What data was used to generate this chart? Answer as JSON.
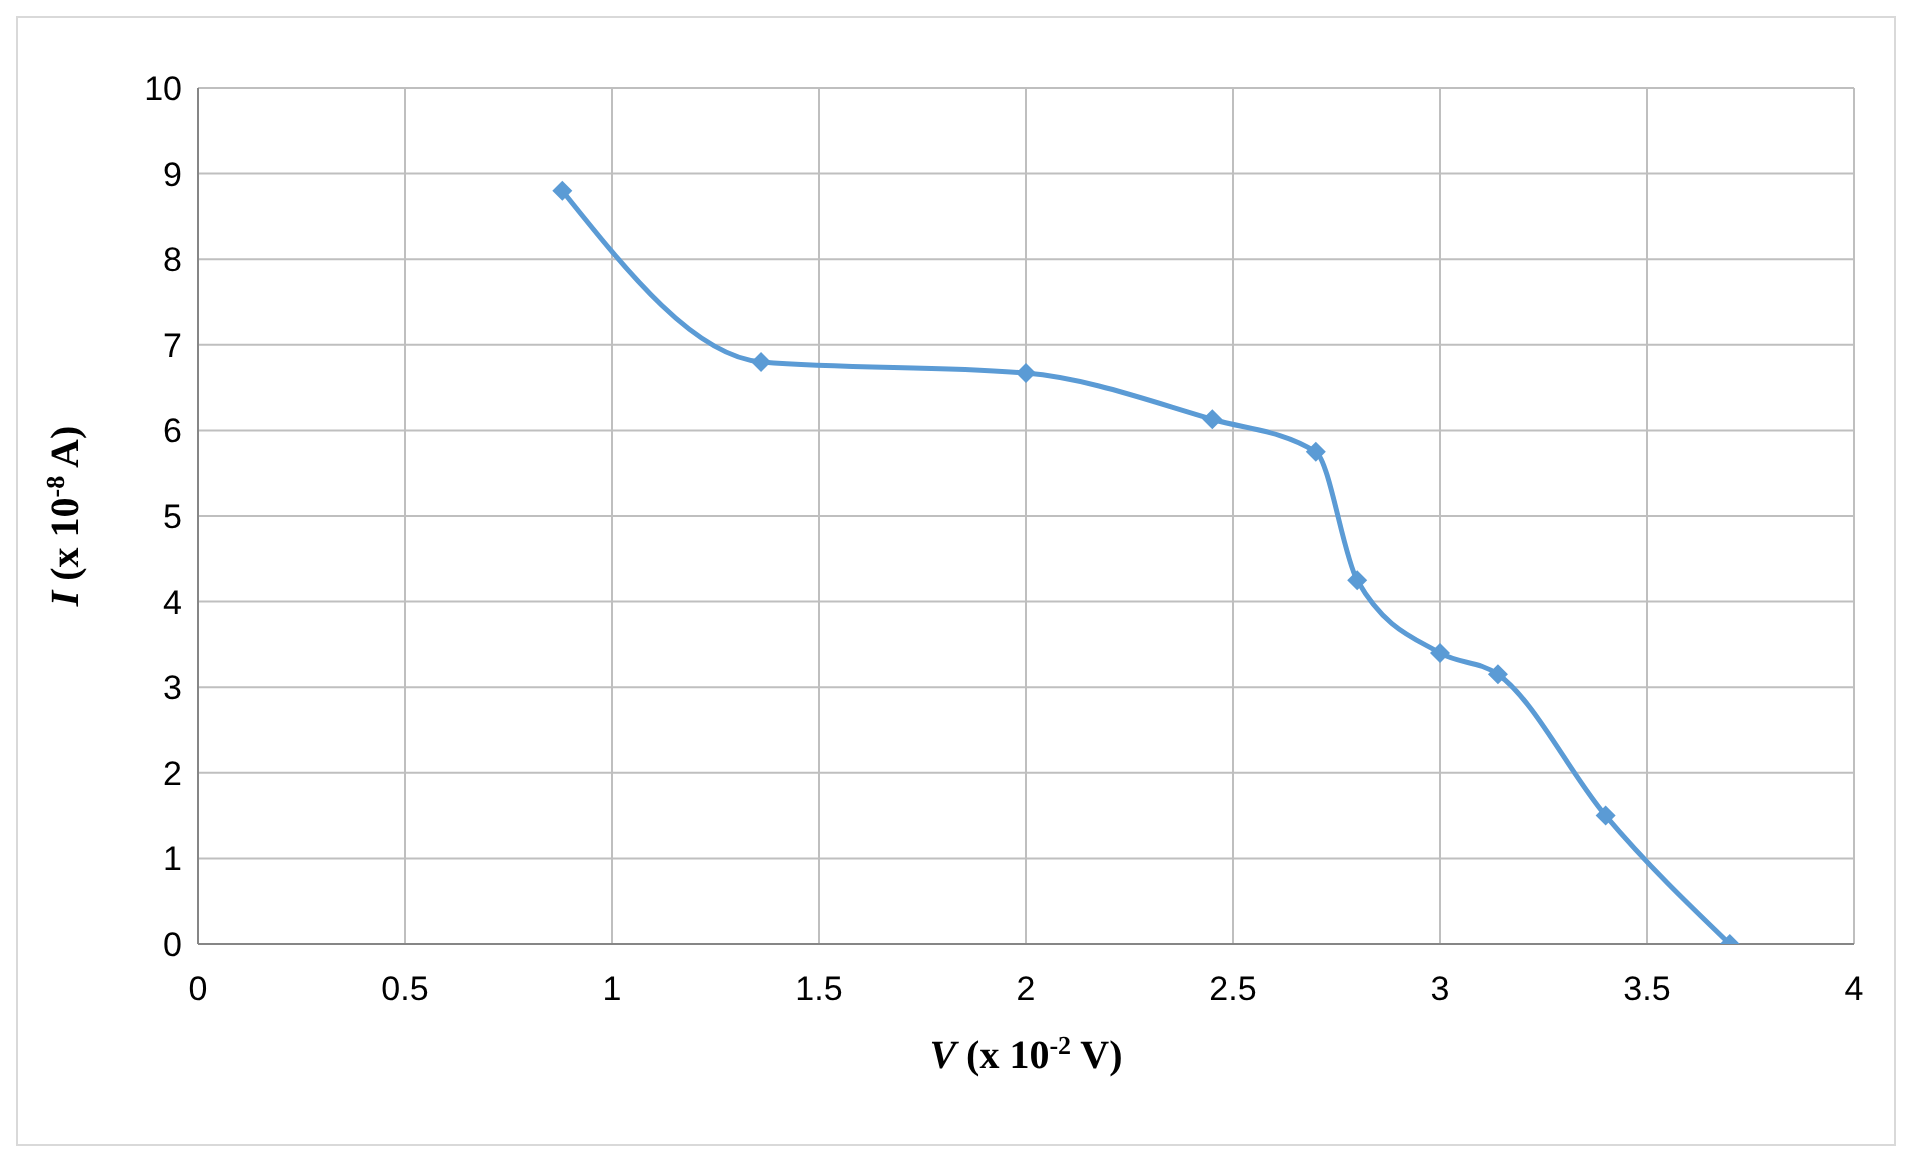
{
  "chart_data": {
    "type": "line",
    "xlabel": "V (x 10$^{-2}$ V)",
    "ylabel": "I (x 10$^{-8}$ A)",
    "x": [
      0.88,
      1.36,
      2.0,
      2.45,
      2.7,
      2.8,
      3.0,
      3.14,
      3.4,
      3.7
    ],
    "series": [
      {
        "color": "#5b9bd5",
        "values": [
          8.8,
          6.8,
          6.67,
          6.13,
          5.75,
          4.25,
          3.4,
          3.15,
          1.5,
          0
        ]
      }
    ],
    "xlim": [
      0,
      4
    ],
    "xticks": [
      0,
      0.5,
      1,
      1.5,
      2,
      2.5,
      3,
      3.5,
      4
    ],
    "ylim": [
      0,
      10
    ],
    "yticks": [
      0,
      1,
      2,
      3,
      4,
      5,
      6,
      7,
      8,
      9,
      10
    ],
    "grid": true,
    "marker": "diamond",
    "line_style": "solid"
  }
}
